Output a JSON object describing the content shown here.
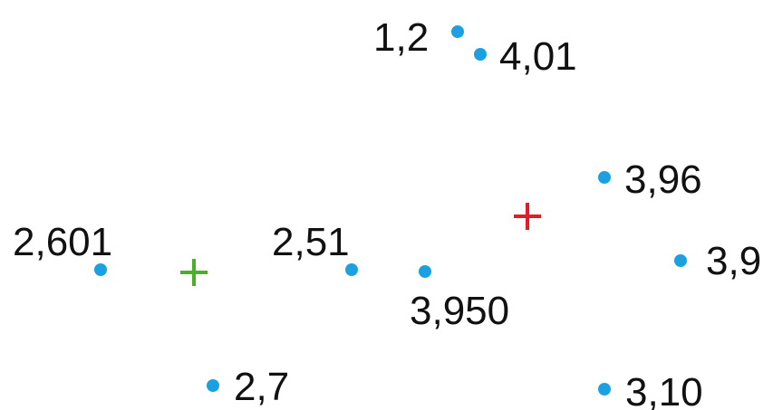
{
  "colors": {
    "point": "#1ba1e2",
    "label": "#111111",
    "marker_green": "#4caf28",
    "marker_red": "#e01e2a",
    "background": "#ffffff"
  },
  "points": [
    {
      "id": "p-1-2",
      "label": "1,2"
    },
    {
      "id": "p-4-01",
      "label": "4,01"
    },
    {
      "id": "p-3-96",
      "label": "3,96"
    },
    {
      "id": "p-2-601",
      "label": "2,601"
    },
    {
      "id": "p-2-51",
      "label": "2,51"
    },
    {
      "id": "p-3-950",
      "label": "3,950"
    },
    {
      "id": "p-3-9",
      "label": "3,9"
    },
    {
      "id": "p-2-7",
      "label": "2,7"
    },
    {
      "id": "p-3-10",
      "label": "3,10"
    }
  ],
  "markers": [
    {
      "id": "marker-green",
      "color": "#4caf28"
    },
    {
      "id": "marker-red",
      "color": "#e01e2a"
    }
  ]
}
